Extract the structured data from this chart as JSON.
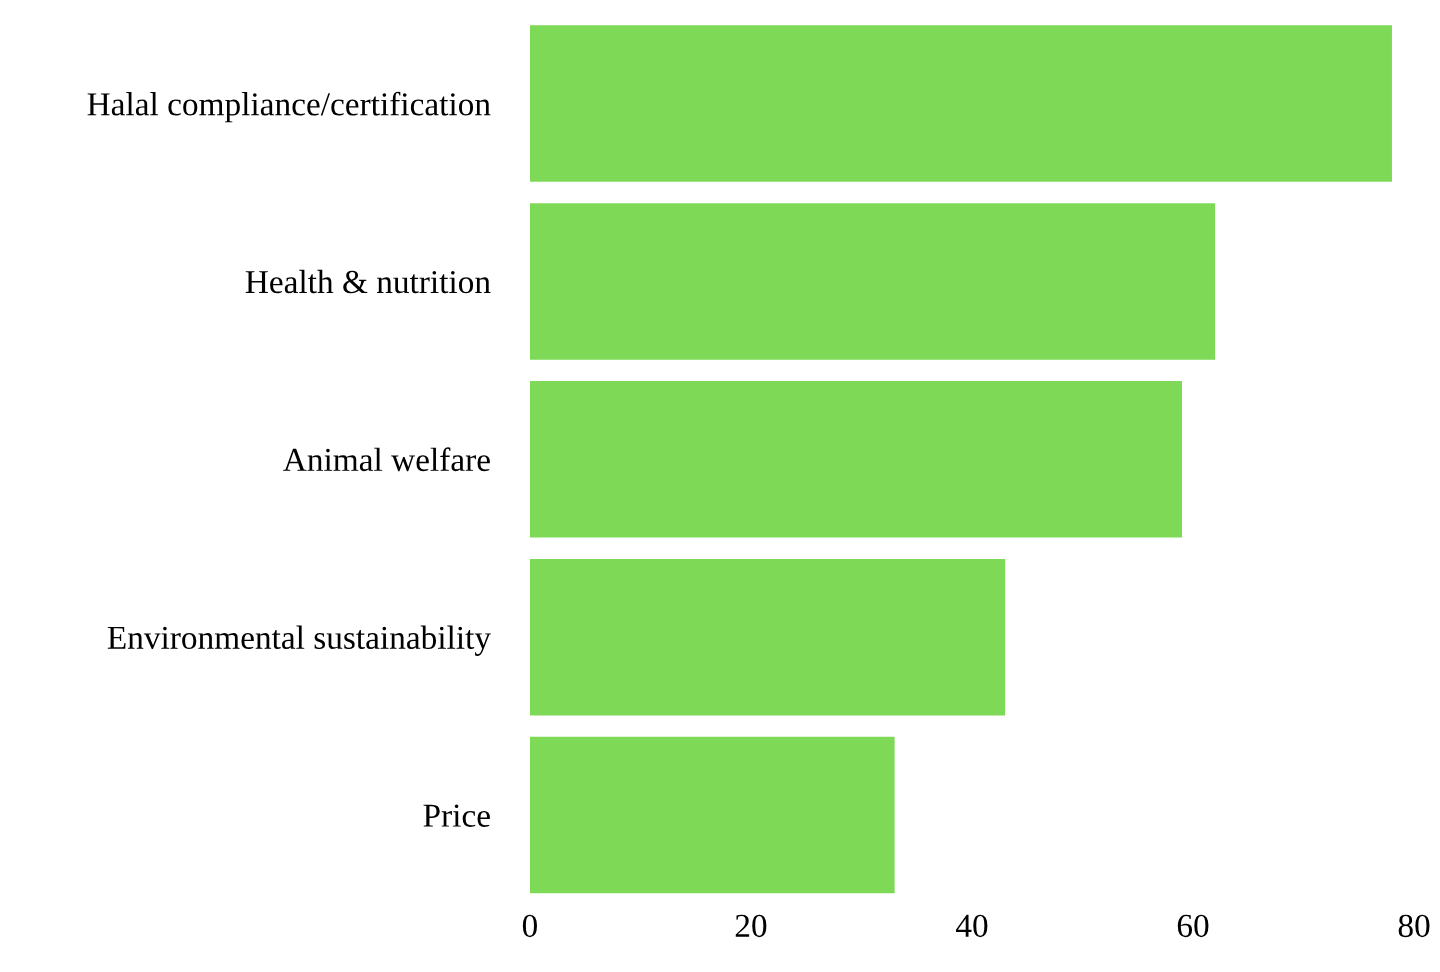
{
  "chart_data": {
    "type": "bar",
    "orientation": "horizontal",
    "categories": [
      "Halal compliance/certification",
      "Health & nutrition",
      "Animal welfare",
      "Environmental sustainability",
      "Price"
    ],
    "values": [
      78,
      62,
      59,
      43,
      33
    ],
    "color": "#7ed957",
    "xlim": [
      0,
      80
    ],
    "xticks": [
      0,
      20,
      40,
      60,
      80
    ],
    "grid": false
  }
}
